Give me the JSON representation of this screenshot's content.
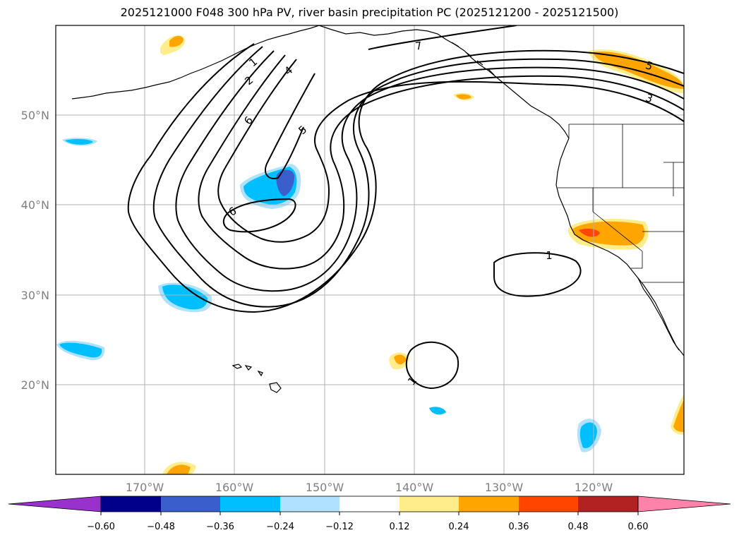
{
  "title": "2025121000 F048 300 hPa PV, river basin precipitation PC (2025121200 - 2025121500)",
  "lat_labels": [
    "50°N",
    "40°N",
    "30°N",
    "20°N"
  ],
  "lon_labels": [
    "170°W",
    "160°W",
    "150°W",
    "140°W",
    "130°W",
    "120°W"
  ],
  "contour_labels": [
    "1",
    "2",
    "4",
    "7",
    "6",
    "5",
    "6",
    "3",
    "5",
    "1",
    "1"
  ],
  "colorbar": {
    "tick_labels": [
      "−0.60",
      "−0.48",
      "−0.36",
      "−0.24",
      "−0.12",
      "0.12",
      "0.24",
      "0.36",
      "0.48",
      "0.60"
    ],
    "colors": [
      "#9932cc",
      "#00008b",
      "#3a5fcd",
      "#00bfff",
      "#b0e2ff",
      "#ffffff",
      "#ffec8b",
      "#ffa500",
      "#ff4500",
      "#b22222",
      "#ff82ab"
    ]
  },
  "colors": {
    "blue": "#00bfff",
    "light_blue": "#b0e2ff",
    "dark_blue": "#3a5fcd",
    "yellow": "#ffec8b",
    "orange": "#ffa500",
    "red": "#ff4500",
    "grid": "#b0b0b0"
  }
}
